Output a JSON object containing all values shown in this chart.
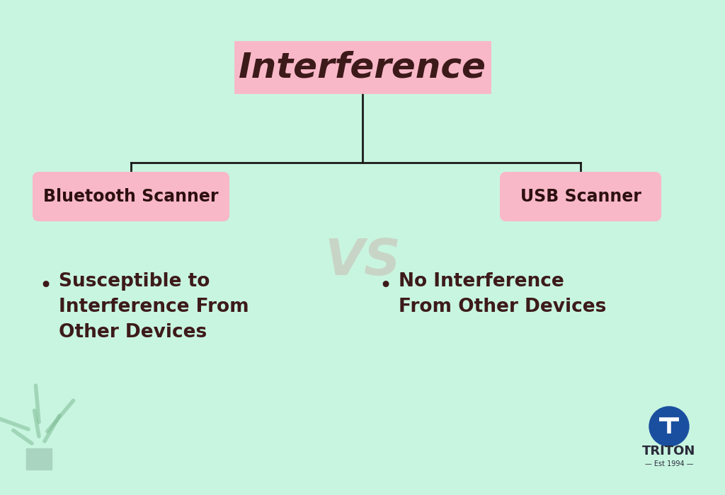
{
  "background_color": "#c8f5e0",
  "title_text": "Interference",
  "title_box_color": "#f9b8c8",
  "title_box_edge_color": "#f9b8c8",
  "title_text_color": "#3d1a1a",
  "branch_label_left": "Bluetooth Scanner",
  "branch_label_right": "USB Scanner",
  "branch_box_color": "#f9b8c8",
  "branch_text_color": "#2d1010",
  "bullet_left": "Susceptible to\nInterference From\nOther Devices",
  "bullet_right": "No Interference\nFrom Other Devices",
  "bullet_text_color": "#3d1a1a",
  "line_color": "#1a1a1a",
  "triton_circle_color": "#1a4fa0",
  "triton_text_color": "#2a2a3a",
  "vs_color": "#cc4455",
  "plant_leaf_color": "#7ab890",
  "plant_pot_color": "#a8d4c0"
}
